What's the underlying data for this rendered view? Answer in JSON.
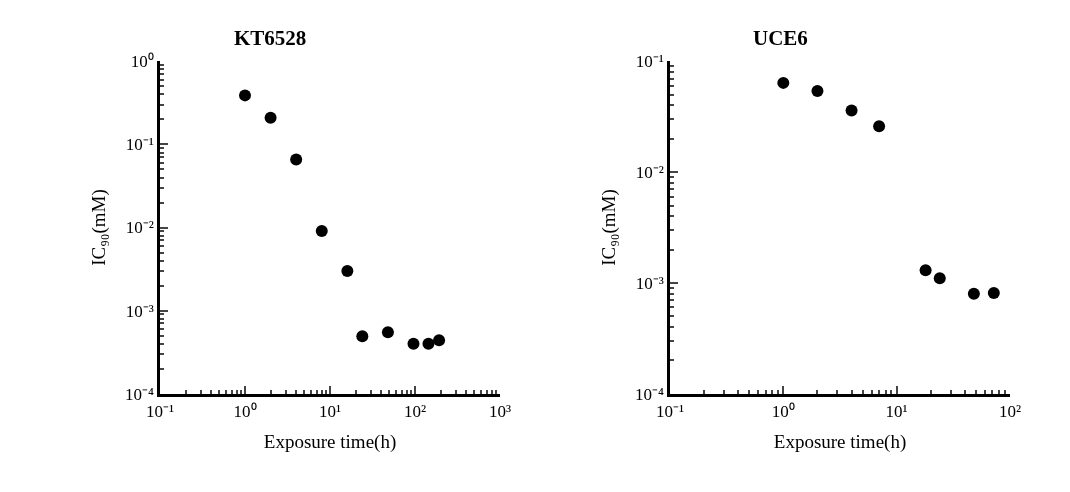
{
  "chart_data": [
    {
      "type": "scatter",
      "title": "KT6528",
      "xlabel": "Exposure time(h)",
      "ylabel": "IC₉₀(mM)",
      "log": "xy",
      "marker": "circle",
      "series": [
        {
          "color": "#000000",
          "x": [
            1,
            2,
            4,
            8,
            16,
            24,
            48,
            96,
            144,
            192
          ],
          "values": [
            0.39,
            0.21,
            0.066,
            0.0091,
            0.003,
            0.00049,
            0.00055,
            0.0004,
            0.0004,
            0.00044
          ]
        }
      ],
      "xlim": [
        0.1,
        1000
      ],
      "xticks": [
        {
          "value": 0.1,
          "label": "10⁻¹"
        },
        {
          "value": 1,
          "label": "10⁰"
        },
        {
          "value": 10,
          "label": "10¹"
        },
        {
          "value": 100,
          "label": "10²"
        },
        {
          "value": 1000,
          "label": "10³"
        }
      ],
      "ylim": [
        0.0001,
        1
      ],
      "yticks": [
        {
          "value": 0.0001,
          "label": "10⁻⁴"
        },
        {
          "value": 0.001,
          "label": "10⁻³"
        },
        {
          "value": 0.01,
          "label": "10⁻²"
        },
        {
          "value": 0.1,
          "label": "10⁻¹"
        },
        {
          "value": 1,
          "label": "10⁰"
        }
      ]
    },
    {
      "type": "scatter",
      "title": "UCE6",
      "xlabel": "Exposure time(h)",
      "ylabel": "IC₉₀(mM)",
      "log": "xy",
      "marker": "circle",
      "series": [
        {
          "color": "#000000",
          "x": [
            1,
            2,
            4,
            7,
            18,
            24,
            48,
            72
          ],
          "values": [
            0.064,
            0.054,
            0.036,
            0.026,
            0.0013,
            0.0011,
            0.0008,
            0.00081
          ]
        }
      ],
      "xlim": [
        0.1,
        100
      ],
      "xticks": [
        {
          "value": 0.1,
          "label": "10⁻¹"
        },
        {
          "value": 1,
          "label": "10⁰"
        },
        {
          "value": 10,
          "label": "10¹"
        },
        {
          "value": 100,
          "label": "10²"
        }
      ],
      "ylim": [
        0.0001,
        0.1
      ],
      "yticks": [
        {
          "value": 0.0001,
          "label": "10⁻⁴"
        },
        {
          "value": 0.001,
          "label": "10⁻³"
        },
        {
          "value": 0.01,
          "label": "10⁻²"
        },
        {
          "value": 0.1,
          "label": "10⁻¹"
        }
      ]
    }
  ]
}
